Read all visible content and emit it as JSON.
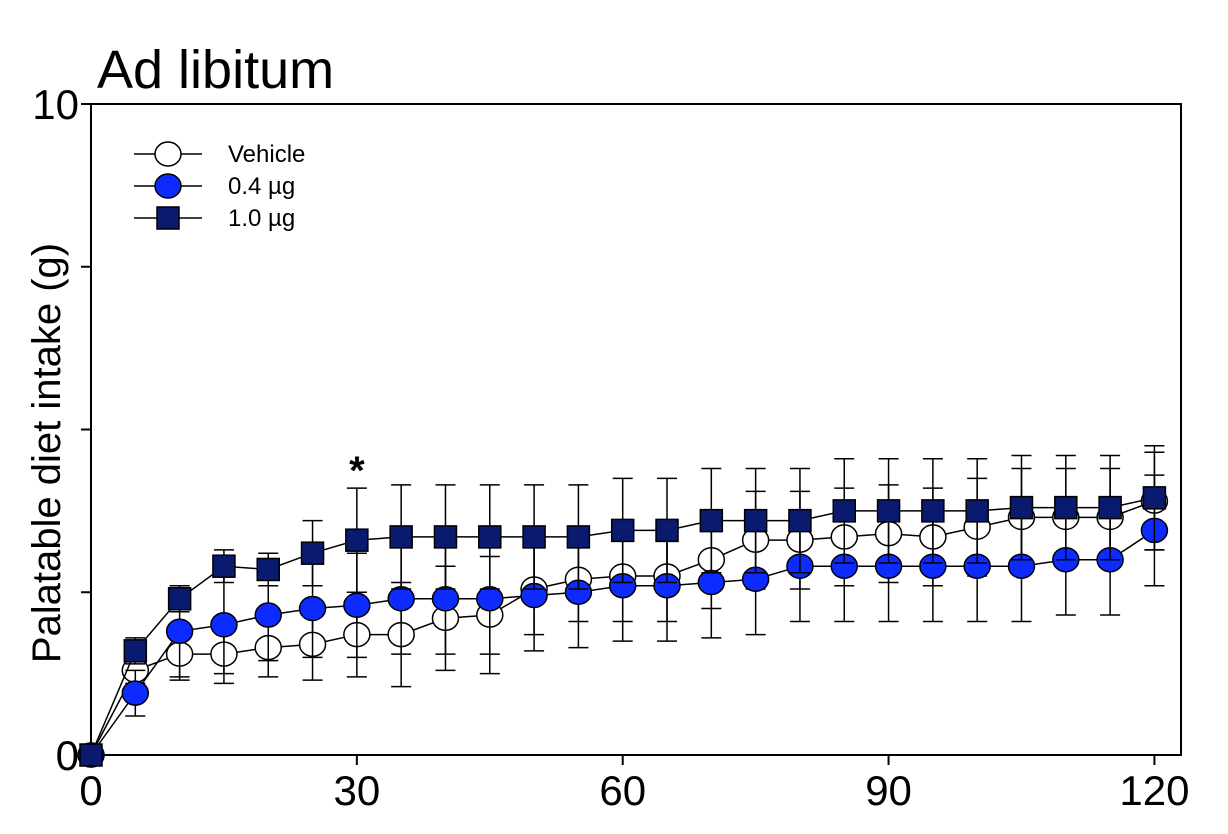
{
  "chart_data": {
    "type": "line",
    "title": "Ad libitum",
    "xlabel": "",
    "ylabel": "Palatable diet intake (g)",
    "xlim": [
      0,
      123
    ],
    "ylim": [
      0,
      10
    ],
    "xticks": [
      0,
      30,
      60,
      90,
      120
    ],
    "xtick_labels": [
      "0",
      "30",
      "60",
      "90",
      "120"
    ],
    "yticks": [
      0,
      2.5,
      5,
      7.5,
      10
    ],
    "ytick_labels": [
      "0",
      "",
      "",
      "",
      "10"
    ],
    "grid": false,
    "legend_position": "top-left",
    "x": [
      0,
      5,
      10,
      15,
      20,
      25,
      30,
      35,
      40,
      45,
      50,
      55,
      60,
      65,
      70,
      75,
      80,
      85,
      90,
      95,
      100,
      105,
      110,
      115,
      120
    ],
    "series": [
      {
        "name": "Vehicle",
        "marker": "circle",
        "fill": "#ffffff",
        "values": [
          0,
          1.3,
          1.55,
          1.55,
          1.65,
          1.7,
          1.85,
          1.85,
          2.1,
          2.15,
          2.55,
          2.7,
          2.75,
          2.75,
          3.0,
          3.3,
          3.3,
          3.35,
          3.4,
          3.35,
          3.5,
          3.65,
          3.65,
          3.65,
          3.9
        ],
        "error": [
          0,
          0.2,
          0.4,
          0.45,
          0.45,
          0.55,
          0.65,
          0.8,
          0.8,
          0.9,
          0.7,
          0.65,
          0.7,
          0.7,
          0.75,
          0.75,
          0.75,
          0.75,
          0.75,
          0.75,
          0.75,
          0.75,
          0.75,
          0.75,
          0.75
        ]
      },
      {
        "name": "0.4 µg",
        "marker": "circle",
        "fill": "#0d2bff",
        "values": [
          0,
          0.95,
          1.9,
          2.0,
          2.15,
          2.25,
          2.3,
          2.4,
          2.4,
          2.4,
          2.45,
          2.5,
          2.6,
          2.6,
          2.65,
          2.7,
          2.9,
          2.9,
          2.9,
          2.9,
          2.9,
          2.9,
          3.0,
          3.0,
          3.45
        ],
        "error": [
          0,
          0.35,
          0.7,
          0.75,
          0.7,
          0.75,
          0.8,
          0.85,
          0.85,
          0.85,
          0.85,
          0.85,
          0.85,
          0.85,
          0.85,
          0.85,
          0.85,
          0.85,
          0.85,
          0.85,
          0.85,
          0.85,
          0.85,
          0.85,
          0.85
        ]
      },
      {
        "name": "1.0 µg",
        "marker": "square",
        "fill": "#0a1a6e",
        "values": [
          0,
          1.6,
          2.4,
          2.9,
          2.85,
          3.1,
          3.3,
          3.35,
          3.35,
          3.35,
          3.35,
          3.35,
          3.45,
          3.45,
          3.6,
          3.6,
          3.6,
          3.75,
          3.75,
          3.75,
          3.75,
          3.8,
          3.8,
          3.8,
          3.95
        ],
        "error": [
          0,
          0.2,
          0.2,
          0.25,
          0.25,
          0.5,
          0.8,
          0.8,
          0.8,
          0.8,
          0.8,
          0.8,
          0.8,
          0.8,
          0.8,
          0.8,
          0.8,
          0.8,
          0.8,
          0.8,
          0.8,
          0.8,
          0.8,
          0.8,
          0.8
        ]
      }
    ],
    "annotations": [
      {
        "text": "*",
        "x": 30,
        "y": 4.35
      }
    ]
  }
}
